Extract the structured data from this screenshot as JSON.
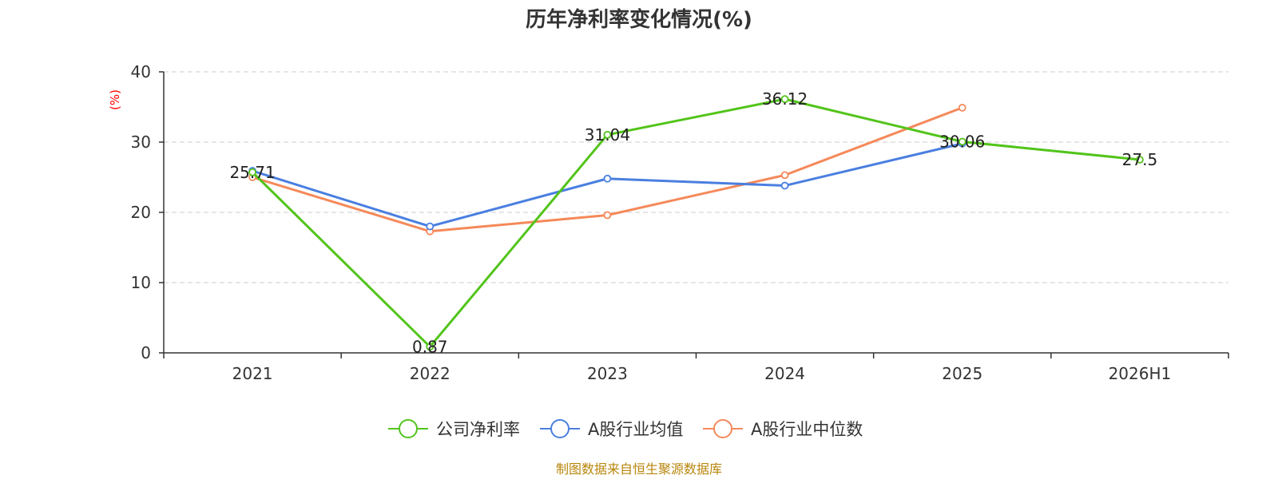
{
  "chart_data": {
    "type": "line",
    "title": "历年净利率变化情况(%)",
    "ylabel": "(%)",
    "ylim": [
      0,
      40
    ],
    "yticks": [
      0,
      10,
      20,
      30,
      40
    ],
    "categories": [
      "2021",
      "2022",
      "2023",
      "2024",
      "2025",
      "2026H1"
    ],
    "series": [
      {
        "name": "公司净利率",
        "color": "#52c41a",
        "values": [
          25.71,
          0.87,
          31.04,
          36.12,
          30.06,
          27.5
        ],
        "labels": [
          "25.71",
          "0.87",
          "31.04",
          "36.12",
          "30.06",
          "27.5"
        ]
      },
      {
        "name": "A股行业均值",
        "color": "#4a7fe0",
        "values": [
          25.9,
          18.0,
          24.8,
          23.8,
          29.8,
          null
        ]
      },
      {
        "name": "A股行业中位数",
        "color": "#f5895a",
        "values": [
          25.0,
          17.3,
          19.6,
          25.3,
          34.9,
          null
        ]
      }
    ],
    "grid": true,
    "legend_position": "bottom"
  },
  "source": "制图数据来自恒生聚源数据库"
}
